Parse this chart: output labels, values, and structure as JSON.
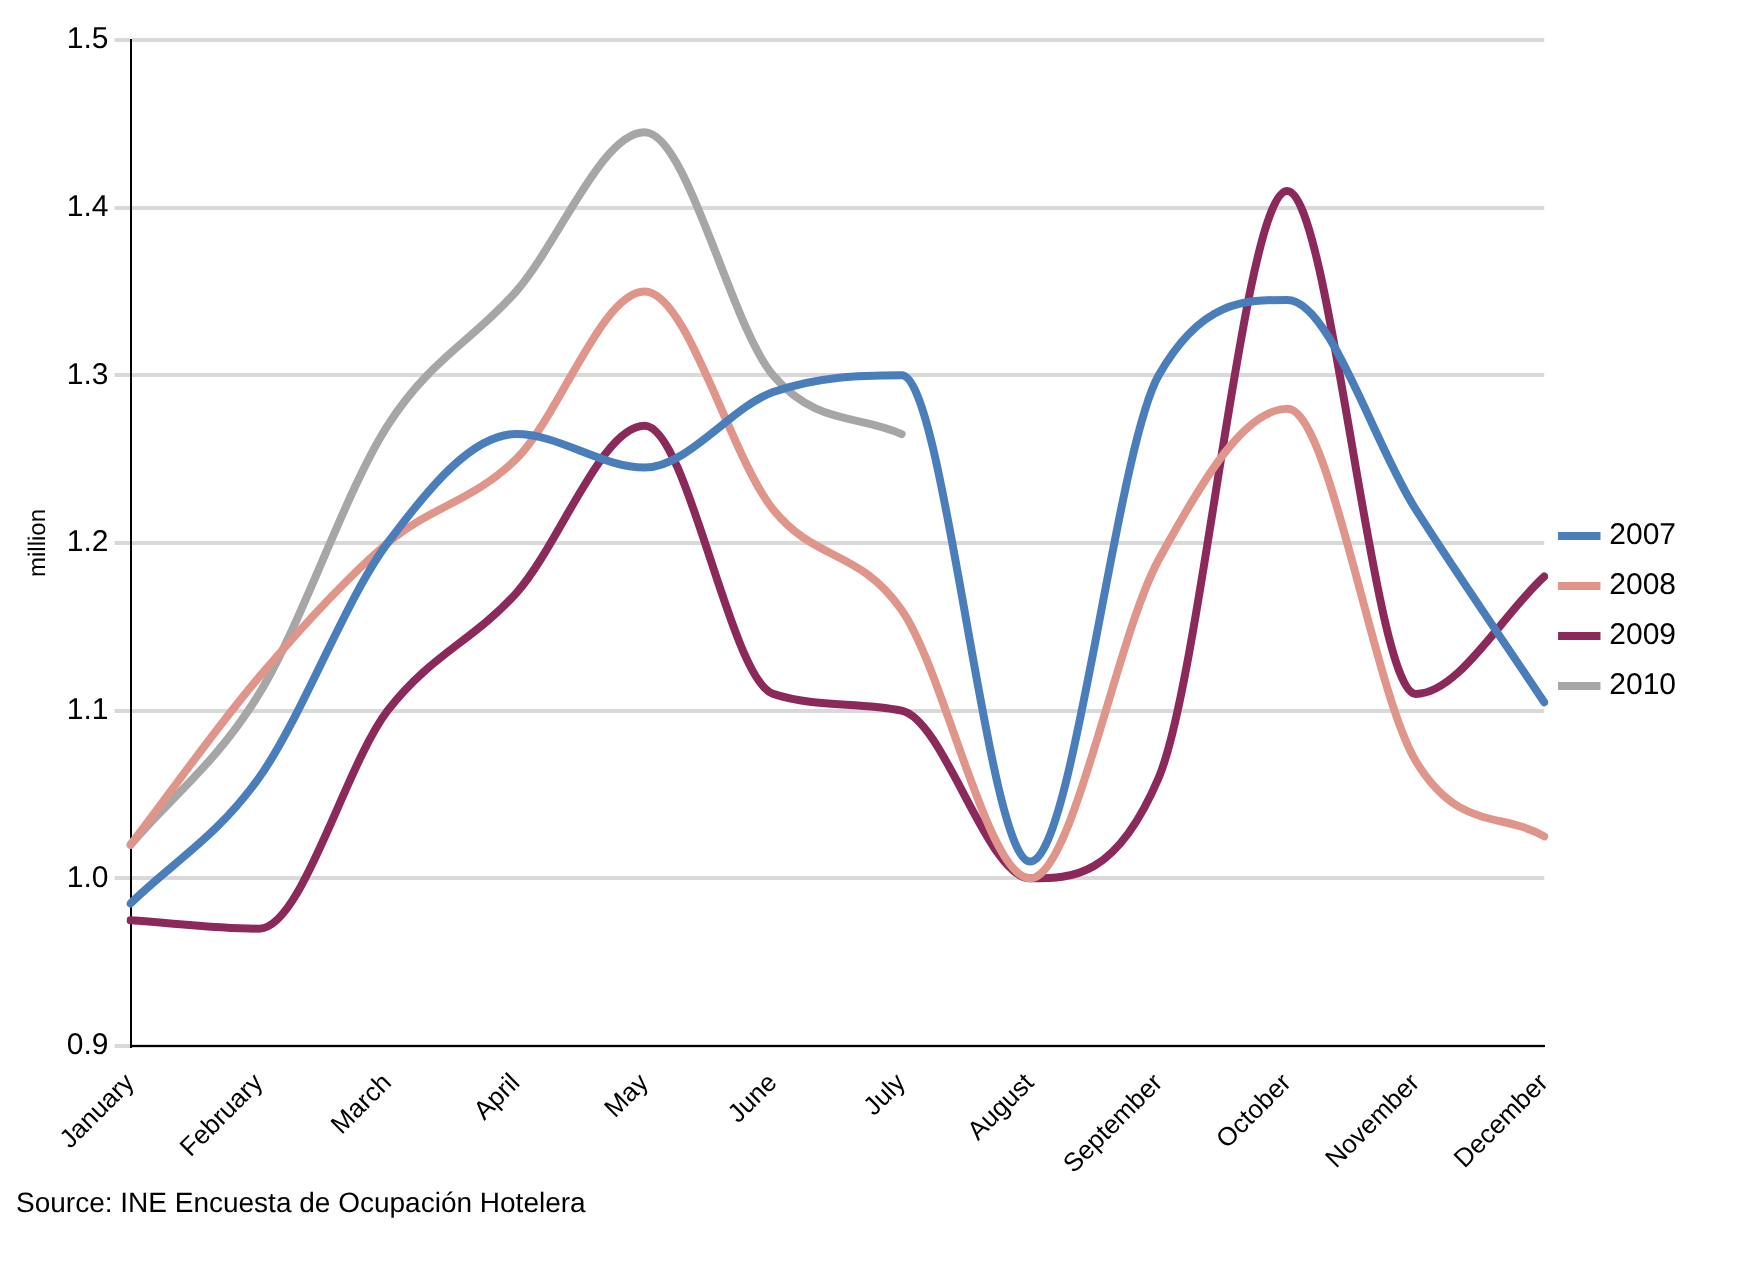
{
  "chart_data": {
    "type": "line",
    "ylabel": "million",
    "categories": [
      "January",
      "February",
      "March",
      "April",
      "May",
      "June",
      "July",
      "August",
      "September",
      "October",
      "November",
      "December"
    ],
    "series": [
      {
        "name": "2007",
        "color": "#4a7ebb",
        "values": [
          0.985,
          1.06,
          1.2,
          1.265,
          1.245,
          1.29,
          1.3,
          1.01,
          1.3,
          1.345,
          1.22,
          1.105
        ]
      },
      {
        "name": "2008",
        "color": "#e0958a",
        "values": [
          1.02,
          1.12,
          1.2,
          1.25,
          1.35,
          1.22,
          1.16,
          1.0,
          1.19,
          1.28,
          1.07,
          1.025
        ]
      },
      {
        "name": "2009",
        "color": "#8b2a5a",
        "values": [
          0.975,
          0.97,
          1.1,
          1.17,
          1.27,
          1.11,
          1.1,
          1.0,
          1.06,
          1.41,
          1.11,
          1.18
        ]
      },
      {
        "name": "2010",
        "color": "#a6a6a6",
        "values": [
          1.02,
          1.11,
          1.27,
          1.35,
          1.445,
          1.3,
          1.265,
          null,
          null,
          null,
          null,
          null
        ]
      }
    ],
    "ylim": [
      0.9,
      1.5
    ],
    "yticks": [
      {
        "value": 0.9,
        "label": "0.9"
      },
      {
        "value": 1.0,
        "label": "1.0"
      },
      {
        "value": 1.1,
        "label": "1.1"
      },
      {
        "value": 1.2,
        "label": "1.2"
      },
      {
        "value": 1.3,
        "label": "1.3"
      },
      {
        "value": 1.4,
        "label": "1.4"
      },
      {
        "value": 1.5,
        "label": "1.5"
      }
    ],
    "grid": "y",
    "legend": "right",
    "marker": "none",
    "line_style": "solid",
    "annotations": [
      "Source: INE Encuesta de Ocupación Hotelera"
    ]
  }
}
